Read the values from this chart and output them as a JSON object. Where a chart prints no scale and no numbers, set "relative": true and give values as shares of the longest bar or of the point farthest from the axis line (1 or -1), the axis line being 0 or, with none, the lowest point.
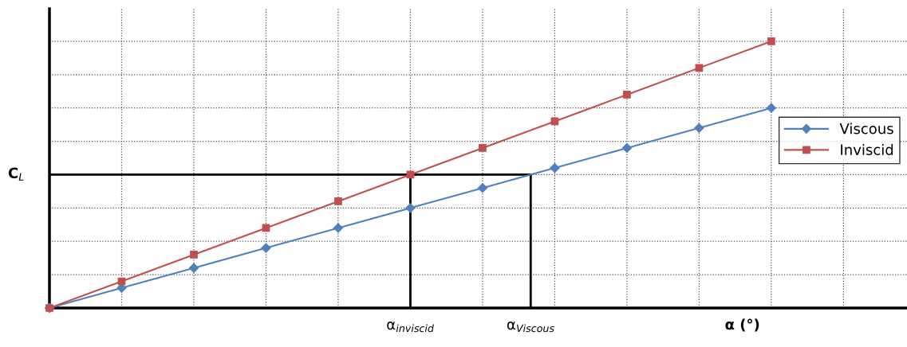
{
  "chart_data": {
    "type": "line",
    "relative": true,
    "xlabel": "α (°)",
    "ylabel": "C$_{L}$",
    "categories": [
      null,
      null,
      null,
      null,
      null,
      null,
      null,
      null,
      null,
      null,
      null
    ],
    "series": [
      {
        "name": "Viscous",
        "color": "#4f81bd",
        "marker": "diamond",
        "values": [
          0,
          0.075,
          0.15,
          0.225,
          0.3,
          0.375,
          0.45,
          0.525,
          0.6,
          0.675,
          0.75
        ]
      },
      {
        "name": "Inviscid",
        "color": "#c0504d",
        "marker": "square",
        "values": [
          0,
          0.1,
          0.2,
          0.3,
          0.4,
          0.5,
          0.6,
          0.7,
          0.8,
          0.9,
          1.0
        ]
      }
    ],
    "ref_lines": [
      {
        "axis": "y",
        "value": 0.5,
        "color": "#000000"
      }
    ],
    "annotations": [
      "α$_{inviscid}$",
      "α$_{Viscous}$"
    ],
    "grid": true,
    "legend": "right",
    "line_style": "solid"
  }
}
